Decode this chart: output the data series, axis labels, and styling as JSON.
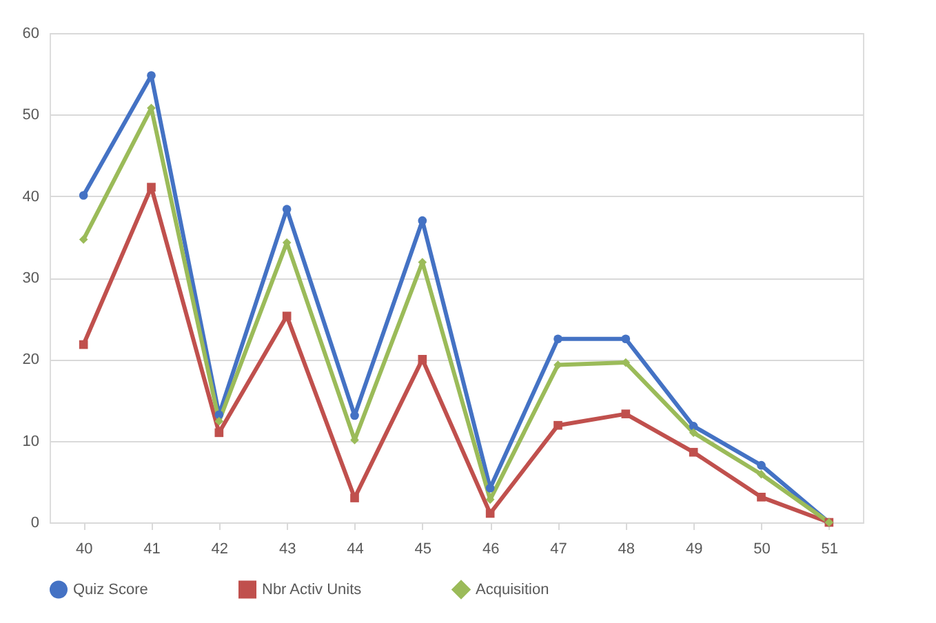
{
  "chart_data": {
    "type": "line",
    "categories": [
      "40",
      "41",
      "42",
      "43",
      "44",
      "45",
      "46",
      "47",
      "48",
      "49",
      "50",
      "51"
    ],
    "series": [
      {
        "name": "Quiz Score",
        "color": "#4472c4",
        "marker": "circle",
        "values": [
          40.1,
          54.8,
          13.2,
          38.4,
          13.1,
          37.0,
          4.2,
          22.5,
          22.5,
          11.8,
          7.0,
          0
        ]
      },
      {
        "name": "Nbr Activ Units",
        "color": "#c0504d",
        "marker": "square",
        "values": [
          21.8,
          41.1,
          11.0,
          25.3,
          3.0,
          20.0,
          1.1,
          11.9,
          13.3,
          8.6,
          3.1,
          0
        ]
      },
      {
        "name": "Acquisition",
        "color": "#9bbb59",
        "marker": "diamond",
        "values": [
          34.7,
          50.8,
          12.4,
          34.3,
          10.1,
          31.9,
          2.8,
          19.3,
          19.6,
          11.0,
          5.9,
          0
        ]
      }
    ],
    "ylim": [
      0,
      60
    ],
    "yticks": [
      0,
      10,
      20,
      30,
      40,
      50,
      60
    ],
    "grid": "y",
    "legend": "bottom",
    "line_style": "solid"
  }
}
